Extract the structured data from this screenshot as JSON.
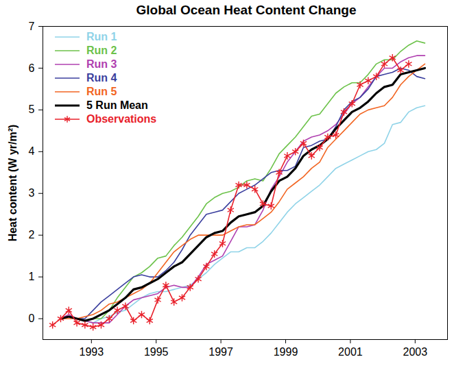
{
  "chart_data": {
    "type": "line",
    "title": "Global Ocean Heat Content Change",
    "y_label": "Heat content (W yr/m²)",
    "xlim": [
      1991.5,
      2004
    ],
    "xticks": [
      1993,
      1995,
      1997,
      1999,
      2001,
      2003
    ],
    "ylim": [
      -0.5,
      7
    ],
    "yticks": [
      0,
      1,
      2,
      3,
      4,
      5,
      6,
      7
    ],
    "grid": false,
    "legend": "upper left",
    "x": [
      1991.8,
      1992.05,
      1992.3,
      1992.55,
      1992.8,
      1993.05,
      1993.3,
      1993.55,
      1993.8,
      1994.05,
      1994.3,
      1994.55,
      1994.8,
      1995.05,
      1995.3,
      1995.55,
      1995.8,
      1996.05,
      1996.3,
      1996.55,
      1996.8,
      1997.05,
      1997.3,
      1997.55,
      1997.8,
      1998.05,
      1998.3,
      1998.55,
      1998.8,
      1999.05,
      1999.3,
      1999.55,
      1999.8,
      2000.05,
      2000.3,
      2000.55,
      2000.8,
      2001.05,
      2001.3,
      2001.55,
      2001.8,
      2002.05,
      2002.3,
      2002.55,
      2002.8,
      2003.05,
      2003.3
    ],
    "series": [
      {
        "name": "Run 1",
        "color": "#8fd3e8",
        "line_style": "solid",
        "values": [
          null,
          0,
          0.05,
          0,
          -0.05,
          -0.1,
          0,
          0.05,
          0.15,
          0.2,
          0.35,
          0.5,
          0.6,
          0.65,
          0.65,
          0.7,
          0.75,
          0.8,
          0.95,
          1.1,
          1.3,
          1.45,
          1.6,
          1.6,
          1.7,
          1.7,
          1.85,
          2.05,
          2.3,
          2.55,
          2.75,
          2.9,
          3.05,
          3.2,
          3.4,
          3.6,
          3.7,
          3.8,
          3.9,
          4.0,
          4.05,
          4.2,
          4.65,
          4.7,
          4.95,
          5.05,
          5.1
        ]
      },
      {
        "name": "Run 2",
        "color": "#6cc24a",
        "line_style": "solid",
        "values": [
          null,
          0,
          0.05,
          0,
          -0.05,
          0,
          0,
          0.2,
          0.5,
          0.75,
          1.0,
          1.1,
          1.25,
          1.45,
          1.5,
          1.75,
          1.95,
          2.2,
          2.45,
          2.75,
          2.9,
          3.0,
          3.05,
          3.15,
          3.3,
          3.35,
          3.3,
          3.6,
          3.95,
          4.15,
          4.35,
          4.6,
          4.85,
          4.9,
          5.15,
          5.4,
          5.55,
          5.65,
          5.65,
          5.85,
          6.1,
          6.2,
          6.2,
          6.4,
          6.55,
          6.65,
          6.6
        ]
      },
      {
        "name": "Run 3",
        "color": "#b040b0",
        "line_style": "solid",
        "values": [
          null,
          0,
          0.1,
          0,
          -0.05,
          -0.1,
          -0.1,
          -0.1,
          0.1,
          0.3,
          0.45,
          0.5,
          0.55,
          0.6,
          0.75,
          0.8,
          0.75,
          0.75,
          1.0,
          1.3,
          1.4,
          1.5,
          1.85,
          2.2,
          2.2,
          2.25,
          2.6,
          3.1,
          3.4,
          3.75,
          4.0,
          4.25,
          4.35,
          4.4,
          4.5,
          4.65,
          4.9,
          5.15,
          5.3,
          5.55,
          5.8,
          6.0,
          6.0,
          6.15,
          6.25,
          6.3,
          6.3
        ]
      },
      {
        "name": "Run 4",
        "color": "#3b3f9e",
        "line_style": "solid",
        "values": [
          null,
          0,
          0.05,
          0,
          0,
          0.2,
          0.4,
          0.55,
          0.7,
          0.85,
          1.0,
          1.05,
          1.0,
          1.0,
          1.15,
          1.35,
          1.65,
          2.0,
          2.25,
          2.5,
          2.55,
          2.6,
          2.8,
          3.0,
          3.1,
          3.2,
          3.35,
          3.5,
          3.55,
          3.55,
          3.65,
          4.1,
          4.15,
          4.25,
          4.3,
          4.6,
          5.0,
          5.2,
          5.3,
          5.5,
          5.8,
          5.85,
          5.9,
          6.0,
          5.95,
          5.8,
          5.75
        ]
      },
      {
        "name": "Run 5",
        "color": "#f26522",
        "line_style": "solid",
        "values": [
          null,
          0,
          0,
          0,
          0.05,
          0.1,
          0.2,
          0.35,
          0.4,
          0.5,
          0.6,
          0.7,
          0.85,
          1.1,
          1.35,
          1.6,
          1.75,
          1.9,
          2.0,
          2.0,
          2.0,
          2.0,
          2.1,
          2.2,
          2.25,
          2.25,
          2.4,
          2.55,
          2.8,
          3.1,
          3.25,
          3.4,
          3.6,
          3.75,
          4.1,
          4.3,
          4.5,
          4.7,
          4.9,
          5.0,
          5.05,
          5.1,
          5.3,
          5.6,
          5.8,
          5.95,
          6.1
        ]
      },
      {
        "name": "5 Run Mean",
        "color": "#000000",
        "line_style": "thick",
        "values": [
          null,
          0,
          0.05,
          0,
          -0.05,
          0,
          0.1,
          0.2,
          0.35,
          0.5,
          0.7,
          0.75,
          0.85,
          0.95,
          1.1,
          1.25,
          1.35,
          1.55,
          1.75,
          1.95,
          2.05,
          2.1,
          2.3,
          2.45,
          2.5,
          2.55,
          2.7,
          3.05,
          3.3,
          3.4,
          3.6,
          3.9,
          4.05,
          4.15,
          4.3,
          4.55,
          4.75,
          4.95,
          5.05,
          5.2,
          5.4,
          5.55,
          5.6,
          5.85,
          5.9,
          5.95,
          6.0
        ]
      },
      {
        "name": "Observations",
        "color": "#e8202a",
        "line_style": "solid",
        "marker": "asterisk",
        "values": [
          -0.15,
          0,
          0.2,
          -0.1,
          -0.15,
          -0.2,
          -0.15,
          0,
          0.2,
          0.3,
          -0.05,
          0.1,
          -0.05,
          0.45,
          0.8,
          0.4,
          0.5,
          0.75,
          0.95,
          1.25,
          1.55,
          1.8,
          2.6,
          3.2,
          3.2,
          3.1,
          2.75,
          2.7,
          3.5,
          3.9,
          4.0,
          4.2,
          3.9,
          4.1,
          4.35,
          4.4,
          4.95,
          5.15,
          5.6,
          5.7,
          5.8,
          6.1,
          6.25,
          5.95,
          6.1,
          null,
          null
        ]
      }
    ]
  }
}
